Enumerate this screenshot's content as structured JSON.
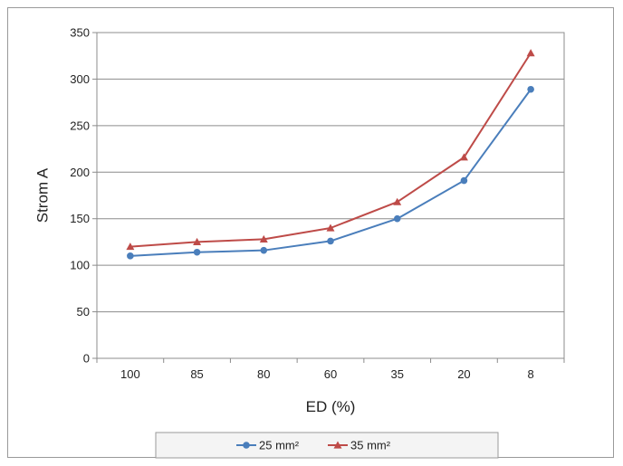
{
  "chart_data": {
    "type": "line",
    "title": "",
    "xlabel": "ED (%)",
    "ylabel": "Strom A",
    "categories": [
      "100",
      "85",
      "80",
      "60",
      "35",
      "20",
      "8"
    ],
    "ylim": [
      0,
      350
    ],
    "yticks": [
      0,
      50,
      100,
      150,
      200,
      250,
      300,
      350
    ],
    "grid": "horizontal",
    "legend_position": "bottom",
    "series": [
      {
        "name": "25 mm²",
        "values": [
          110,
          114,
          116,
          126,
          150,
          191,
          289
        ],
        "color": "#4a7ebb",
        "marker": "circle"
      },
      {
        "name": "35 mm²",
        "values": [
          120,
          125,
          128,
          140,
          168,
          216,
          328
        ],
        "color": "#be4b48",
        "marker": "triangle"
      }
    ]
  }
}
